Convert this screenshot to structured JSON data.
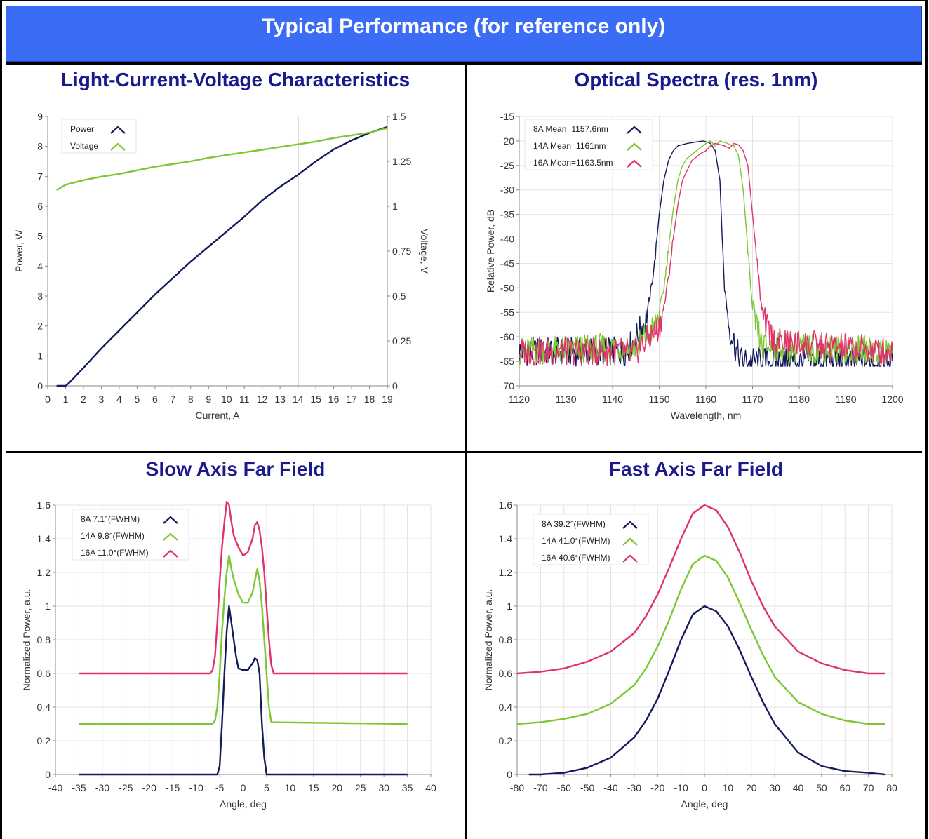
{
  "header": {
    "title": "Typical Performance (for reference only)"
  },
  "colors": {
    "header_bg": "#3b6cf6",
    "title_text": "#1a1a8c",
    "navy": "#141a5e",
    "green": "#7cc832",
    "magenta": "#e0336b"
  },
  "chart_data": [
    {
      "id": "liv",
      "type": "line",
      "title": "Light-Current-Voltage Characteristics",
      "xlabel": "Current, A",
      "ylabel": "Power, W",
      "y2label": "Voltage, V",
      "xlim": [
        0,
        19
      ],
      "ylim": [
        0,
        9
      ],
      "y2lim": [
        0,
        1.5
      ],
      "xticks": [
        "0",
        "1",
        "2",
        "3",
        "4",
        "5",
        "6",
        "7",
        "8",
        "9",
        "10",
        "11",
        "12",
        "13",
        "14",
        "15",
        "16",
        "17",
        "18",
        "19"
      ],
      "yticks": [
        "0",
        "1",
        "2",
        "3",
        "4",
        "5",
        "6",
        "7",
        "8",
        "9"
      ],
      "y2ticks": [
        "0",
        "0.25",
        "0.5",
        "0.75",
        "1",
        "1.25",
        "1.5"
      ],
      "cursor_x": 14,
      "grid": false,
      "legend": "top-left",
      "series": [
        {
          "name": "Power",
          "axis": "left",
          "color": "#141a5e",
          "x": [
            0.5,
            1,
            1.2,
            2,
            3,
            4,
            5,
            6,
            7,
            8,
            9,
            10,
            11,
            12,
            13,
            14,
            15,
            16,
            17,
            18,
            19
          ],
          "y": [
            0,
            0,
            0.1,
            0.6,
            1.25,
            1.85,
            2.45,
            3.05,
            3.6,
            4.15,
            4.65,
            5.15,
            5.65,
            6.2,
            6.65,
            7.05,
            7.5,
            7.9,
            8.2,
            8.45,
            8.65
          ]
        },
        {
          "name": "Voltage",
          "axis": "right",
          "color": "#7cc832",
          "x": [
            0.5,
            1,
            2,
            3,
            4,
            5,
            6,
            7,
            8,
            9,
            10,
            11,
            12,
            13,
            14,
            15,
            16,
            17,
            18,
            19
          ],
          "y": [
            1.09,
            1.12,
            1.145,
            1.165,
            1.18,
            1.2,
            1.22,
            1.235,
            1.25,
            1.27,
            1.285,
            1.3,
            1.315,
            1.33,
            1.345,
            1.36,
            1.38,
            1.395,
            1.41,
            1.435
          ]
        }
      ]
    },
    {
      "id": "spectra",
      "type": "line",
      "title": "Optical Spectra (res. 1nm)",
      "xlabel": "Wavelength, nm",
      "ylabel": "Relative Power, dB",
      "xlim": [
        1120,
        1200
      ],
      "ylim": [
        -70,
        -15
      ],
      "xticks": [
        "1120",
        "1130",
        "1140",
        "1150",
        "1160",
        "1170",
        "1180",
        "1190",
        "1200"
      ],
      "yticks": [
        "-70",
        "-65",
        "-60",
        "-55",
        "-50",
        "-45",
        "-40",
        "-35",
        "-30",
        "-25",
        "-20",
        "-15"
      ],
      "grid": true,
      "legend": "top-left",
      "series": [
        {
          "name": "8A Mean=1157.6nm",
          "color": "#141a5e",
          "x": [
            1120,
            1143,
            1145,
            1147,
            1148,
            1149,
            1150,
            1151,
            1152,
            1153,
            1154,
            1156,
            1158,
            1159.5,
            1161,
            1162,
            1163,
            1163.5,
            1164,
            1165,
            1166,
            1167,
            1168,
            1200
          ],
          "y": [
            -63,
            -63,
            -60,
            -57,
            -52,
            -45,
            -35,
            -28,
            -24,
            -22,
            -21,
            -20.5,
            -20.2,
            -20,
            -20.5,
            -22,
            -28,
            -40,
            -50,
            -58,
            -61,
            -64,
            -65,
            -65
          ]
        },
        {
          "name": "14A Mean=1161nm",
          "color": "#7cc832",
          "x": [
            1120,
            1145,
            1147,
            1149,
            1150,
            1151,
            1152,
            1153,
            1154,
            1155,
            1156,
            1158,
            1160,
            1161,
            1162,
            1163,
            1164,
            1166,
            1167,
            1168,
            1169,
            1170,
            1172,
            1200
          ],
          "y": [
            -63,
            -62,
            -60,
            -58,
            -55,
            -50,
            -42,
            -34,
            -28,
            -25,
            -23.5,
            -22,
            -20.5,
            -20,
            -21,
            -20,
            -20.3,
            -21,
            -23,
            -30,
            -42,
            -55,
            -62,
            -63
          ]
        },
        {
          "name": "16A Mean=1163.5nm",
          "color": "#e0336b",
          "x": [
            1120,
            1142,
            1144,
            1146,
            1148,
            1150,
            1151,
            1152,
            1153,
            1154,
            1155,
            1157,
            1159,
            1160,
            1161,
            1162,
            1164,
            1165,
            1166,
            1167,
            1168,
            1169,
            1170,
            1171,
            1172,
            1173,
            1175,
            1200
          ],
          "y": [
            -63,
            -63,
            -64,
            -62,
            -60,
            -58,
            -54,
            -48,
            -40,
            -33,
            -28,
            -24,
            -22.5,
            -22,
            -21,
            -20.5,
            -21,
            -21.5,
            -20.5,
            -20.8,
            -22,
            -25,
            -35,
            -45,
            -55,
            -58,
            -61,
            -63
          ]
        }
      ]
    },
    {
      "id": "slow",
      "type": "line",
      "title": "Slow Axis Far Field",
      "xlabel": "Angle, deg",
      "ylabel": "Normalized Power, a.u.",
      "xlim": [
        -40,
        40
      ],
      "ylim": [
        0,
        1.6
      ],
      "xticks": [
        "-40",
        "-35",
        "-30",
        "-25",
        "-20",
        "-15",
        "-10",
        "-5",
        "0",
        "5",
        "10",
        "15",
        "20",
        "25",
        "30",
        "35",
        "40"
      ],
      "yticks": [
        "0",
        "0.2",
        "0.4",
        "0.6",
        "0.8",
        "1",
        "1.2",
        "1.4",
        "1.6"
      ],
      "grid": true,
      "legend": "top-left",
      "series": [
        {
          "name": "8A 7.1°(FWHM)",
          "color": "#141a5e",
          "x": [
            -35,
            -5.5,
            -5,
            -4.5,
            -4,
            -3.5,
            -3,
            -2.5,
            -2,
            -1.5,
            -1,
            0,
            1,
            2,
            2.5,
            3,
            3.5,
            4,
            4.5,
            5,
            35
          ],
          "y": [
            0,
            0,
            0.05,
            0.3,
            0.6,
            0.85,
            1.0,
            0.9,
            0.8,
            0.7,
            0.63,
            0.62,
            0.62,
            0.66,
            0.69,
            0.68,
            0.6,
            0.3,
            0.1,
            0,
            0
          ]
        },
        {
          "name": "14A 9.8°(FWHM)",
          "color": "#7cc832",
          "x": [
            -35,
            -6.5,
            -6,
            -5.5,
            -5,
            -4.5,
            -4,
            -3.5,
            -3,
            -2.5,
            -2,
            -1,
            0,
            1,
            2,
            2.5,
            3,
            3.5,
            4,
            4.5,
            5,
            5.5,
            6,
            35
          ],
          "y": [
            0.3,
            0.3,
            0.32,
            0.4,
            0.6,
            0.85,
            1.05,
            1.2,
            1.3,
            1.22,
            1.16,
            1.07,
            1.02,
            1.02,
            1.08,
            1.15,
            1.22,
            1.15,
            1.0,
            0.8,
            0.6,
            0.4,
            0.31,
            0.3
          ]
        },
        {
          "name": "16A 11.0°(FWHM)",
          "color": "#e0336b",
          "x": [
            -35,
            -7,
            -6.5,
            -6,
            -5.5,
            -5,
            -4.5,
            -4,
            -3.5,
            -3,
            -2.5,
            -2,
            -1,
            0,
            1,
            2,
            2.5,
            3,
            3.5,
            4,
            4.5,
            5,
            5.5,
            6,
            6.5,
            35
          ],
          "y": [
            0.6,
            0.6,
            0.62,
            0.7,
            0.9,
            1.15,
            1.35,
            1.5,
            1.62,
            1.6,
            1.5,
            1.42,
            1.35,
            1.3,
            1.32,
            1.4,
            1.48,
            1.5,
            1.45,
            1.35,
            1.2,
            1.0,
            0.8,
            0.65,
            0.6,
            0.6
          ]
        }
      ]
    },
    {
      "id": "fast",
      "type": "line",
      "title": "Fast Axis Far Field",
      "xlabel": "Angle, deg",
      "ylabel": "Normalized Power, a.u.",
      "xlim": [
        -80,
        80
      ],
      "ylim": [
        0,
        1.6
      ],
      "xticks": [
        "-80",
        "-70",
        "-60",
        "-50",
        "-40",
        "-30",
        "-20",
        "-10",
        "0",
        "10",
        "20",
        "30",
        "40",
        "50",
        "60",
        "70",
        "80"
      ],
      "yticks": [
        "0",
        "0.2",
        "0.4",
        "0.6",
        "0.8",
        "1",
        "1.2",
        "1.4",
        "1.6"
      ],
      "grid": true,
      "legend": "top-left",
      "series": [
        {
          "name": "8A 39.2°(FWHM)",
          "color": "#141a5e",
          "x": [
            -75,
            -70,
            -60,
            -50,
            -40,
            -30,
            -25,
            -20,
            -15,
            -10,
            -5,
            0,
            5,
            10,
            15,
            20,
            25,
            30,
            40,
            50,
            60,
            70,
            77
          ],
          "y": [
            0,
            0,
            0.01,
            0.04,
            0.1,
            0.22,
            0.32,
            0.45,
            0.62,
            0.8,
            0.95,
            1.0,
            0.97,
            0.88,
            0.74,
            0.58,
            0.43,
            0.3,
            0.13,
            0.05,
            0.02,
            0.01,
            0
          ]
        },
        {
          "name": "14A 41.0°(FWHM)",
          "color": "#7cc832",
          "x": [
            -80,
            -70,
            -60,
            -50,
            -40,
            -30,
            -25,
            -20,
            -15,
            -10,
            -5,
            0,
            5,
            10,
            15,
            20,
            25,
            30,
            40,
            50,
            60,
            70,
            77
          ],
          "y": [
            0.3,
            0.31,
            0.33,
            0.36,
            0.42,
            0.53,
            0.63,
            0.76,
            0.92,
            1.1,
            1.25,
            1.3,
            1.27,
            1.17,
            1.02,
            0.86,
            0.71,
            0.58,
            0.43,
            0.36,
            0.32,
            0.3,
            0.3
          ]
        },
        {
          "name": "16A 40.6°(FWHM)",
          "color": "#e0336b",
          "x": [
            -80,
            -70,
            -60,
            -50,
            -40,
            -30,
            -25,
            -20,
            -15,
            -10,
            -5,
            0,
            5,
            10,
            15,
            20,
            25,
            30,
            40,
            50,
            60,
            70,
            77
          ],
          "y": [
            0.6,
            0.61,
            0.63,
            0.67,
            0.73,
            0.84,
            0.94,
            1.07,
            1.23,
            1.4,
            1.55,
            1.6,
            1.57,
            1.47,
            1.32,
            1.15,
            1.0,
            0.88,
            0.73,
            0.66,
            0.62,
            0.6,
            0.6
          ]
        }
      ]
    }
  ]
}
